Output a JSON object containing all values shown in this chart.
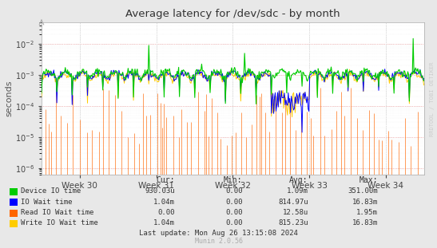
{
  "title": "Average latency for /dev/sdc - by month",
  "ylabel": "seconds",
  "xlabel_ticks": [
    "Week 30",
    "Week 31",
    "Week 32",
    "Week 33",
    "Week 34"
  ],
  "bg_color": "#e8e8e8",
  "plot_bg_color": "#ffffff",
  "ymin": 6e-07,
  "ymax": 0.05,
  "legend_entries": [
    {
      "label": "Device IO time",
      "color": "#00cc00",
      "cur": "930.03u",
      "min": "0.00",
      "avg": "1.09m",
      "max": "351.00m"
    },
    {
      "label": "IO Wait time",
      "color": "#0000ff",
      "cur": "1.04m",
      "min": "0.00",
      "avg": "814.97u",
      "max": "16.83m"
    },
    {
      "label": "Read IO Wait time",
      "color": "#ff6600",
      "cur": "0.00",
      "min": "0.00",
      "avg": "12.58u",
      "max": "1.95m"
    },
    {
      "label": "Write IO Wait time",
      "color": "#ffcc00",
      "cur": "1.04m",
      "min": "0.00",
      "avg": "815.23u",
      "max": "16.83m"
    }
  ],
  "footer": "Last update: Mon Aug 26 13:15:08 2024",
  "watermark": "Munin 2.0.56",
  "rrdtool_label": "RRDTOOL / TOBI OETIKER",
  "n_points": 500,
  "seed": 42
}
